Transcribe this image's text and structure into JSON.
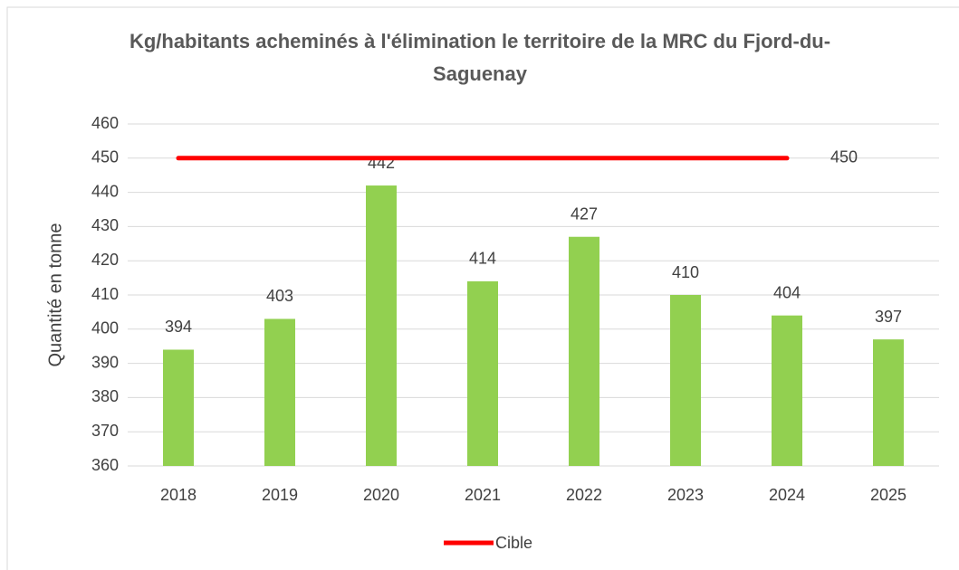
{
  "chart_data": {
    "type": "bar",
    "title": "Kg/habitants acheminés à l'élimination le territoire de la MRC du Fjord-du-Saguenay",
    "y_label": "Quantité en tonne",
    "categories": [
      "2018",
      "2019",
      "2020",
      "2021",
      "2022",
      "2023",
      "2024",
      "2025"
    ],
    "values": [
      394,
      403,
      442,
      414,
      427,
      410,
      404,
      397
    ],
    "color": "#92d050",
    "series": [
      {
        "name": "Cible",
        "color": "#ff0000",
        "values": [
          450,
          450,
          450,
          450,
          450,
          450,
          450,
          null
        ]
      }
    ],
    "ylim": [
      360,
      460
    ],
    "yticks": [
      360,
      370,
      380,
      390,
      400,
      410,
      420,
      430,
      440,
      450,
      460
    ],
    "grid": true,
    "legend": "bottom"
  }
}
